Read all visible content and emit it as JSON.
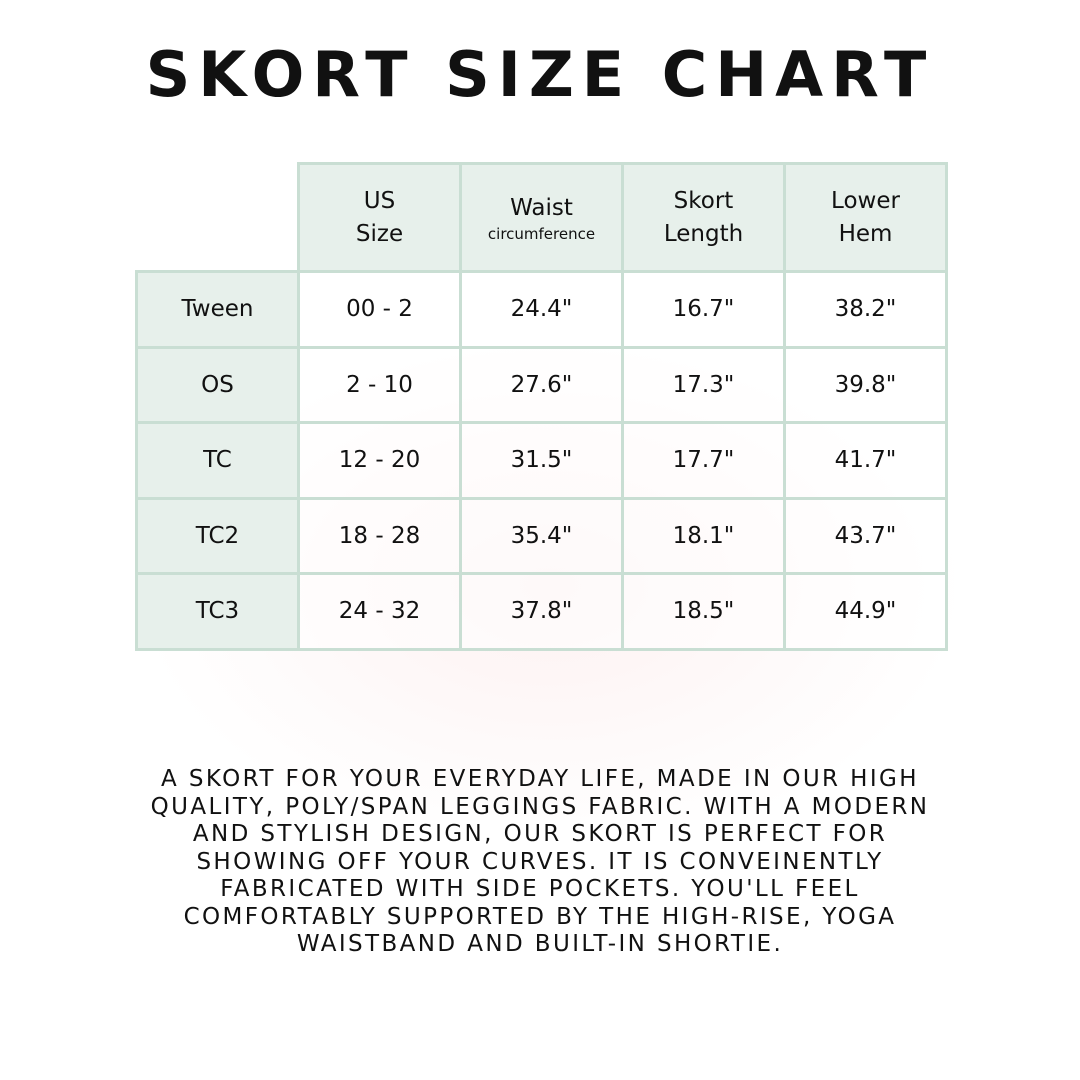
{
  "title": "SKORT SIZE CHART",
  "table": {
    "headers": [
      {
        "line1": "US",
        "line2": "Size",
        "sub": ""
      },
      {
        "line1": "Waist",
        "line2": "",
        "sub": "circumference"
      },
      {
        "line1": "Skort",
        "line2": "Length",
        "sub": ""
      },
      {
        "line1": "Lower",
        "line2": "Hem",
        "sub": ""
      }
    ],
    "rows": [
      {
        "label": "Tween",
        "values": [
          "00 - 2",
          "24.4\"",
          "16.7\"",
          "38.2\""
        ]
      },
      {
        "label": "OS",
        "values": [
          "2 - 10",
          "27.6\"",
          "17.3\"",
          "39.8\""
        ]
      },
      {
        "label": "TC",
        "values": [
          "12 - 20",
          "31.5\"",
          "17.7\"",
          "41.7\""
        ]
      },
      {
        "label": "TC2",
        "values": [
          "18 - 28",
          "35.4\"",
          "18.1\"",
          "43.7\""
        ]
      },
      {
        "label": "TC3",
        "values": [
          "24 - 32",
          "37.8\"",
          "18.5\"",
          "44.9\""
        ]
      }
    ]
  },
  "description_lines": [
    "A SKORT FOR YOUR EVERYDAY LIFE, MADE IN OUR HIGH",
    "QUALITY, POLY/SPAN LEGGINGS FABRIC. WITH A MODERN",
    "AND STYLISH DESIGN, OUR SKORT IS PERFECT FOR",
    "SHOWING OFF YOUR CURVES. IT IS CONVEINENTLY",
    "FABRICATED WITH SIDE POCKETS. YOU'LL FEEL",
    "COMFORTABLY SUPPORTED BY THE HIGH-RISE, YOGA",
    "WAISTBAND AND BUILT-IN SHORTIE."
  ],
  "colors": {
    "header_bg": "#e7f0eb",
    "border": "#c9ded3",
    "text": "#111111"
  }
}
